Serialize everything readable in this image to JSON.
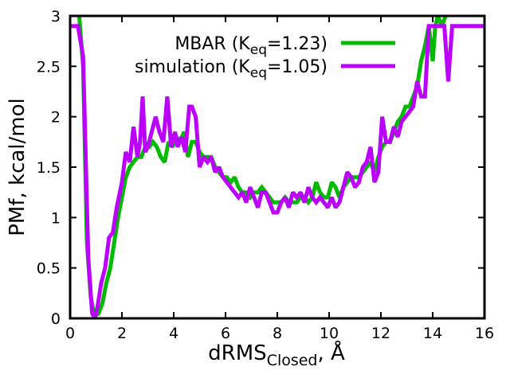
{
  "chart_data": {
    "type": "line",
    "xlabel": "dRMS",
    "xlabel_sub": "Closed",
    "xlabel_suffix": ", Å",
    "ylabel": "PMf, kcal/mol",
    "xlim": [
      0,
      16
    ],
    "ylim": [
      0,
      3
    ],
    "xticks": [
      "0",
      "2",
      "4",
      "6",
      "8",
      "10",
      "12",
      "14",
      "16"
    ],
    "yticks": [
      "0",
      "0.5",
      "1",
      "1.5",
      "2",
      "2.5",
      "3"
    ],
    "grid": false,
    "legend_position": "top-right",
    "series": [
      {
        "name": "MBAR (Keq=1.23)",
        "legend_main": "MBAR (K",
        "legend_sub": "eq",
        "legend_tail": "=1.23)",
        "color": "#00bb00",
        "x": [
          0.35,
          0.5,
          0.65,
          0.8,
          0.95,
          1.1,
          1.25,
          1.4,
          1.55,
          1.7,
          1.85,
          2.0,
          2.15,
          2.3,
          2.45,
          2.6,
          2.75,
          2.9,
          3.05,
          3.2,
          3.35,
          3.5,
          3.65,
          3.8,
          3.95,
          4.1,
          4.25,
          4.4,
          4.55,
          4.7,
          4.85,
          5.0,
          5.15,
          5.3,
          5.45,
          5.6,
          5.75,
          5.9,
          6.05,
          6.2,
          6.35,
          6.5,
          6.65,
          6.8,
          6.95,
          7.1,
          7.25,
          7.4,
          7.55,
          7.7,
          7.85,
          8.0,
          8.15,
          8.3,
          8.45,
          8.6,
          8.75,
          8.9,
          9.05,
          9.2,
          9.35,
          9.5,
          9.65,
          9.8,
          9.95,
          10.1,
          10.25,
          10.4,
          10.55,
          10.7,
          10.85,
          11.0,
          11.15,
          11.3,
          11.45,
          11.6,
          11.75,
          11.9,
          12.05,
          12.2,
          12.35,
          12.5,
          12.65,
          12.8,
          12.95,
          13.1,
          13.25,
          13.4,
          13.55,
          13.7,
          13.85,
          14.0,
          14.1,
          14.2,
          14.35,
          14.5
        ],
        "y": [
          3.0,
          2.5,
          0.75,
          0.2,
          0.02,
          0.05,
          0.15,
          0.35,
          0.5,
          0.75,
          1.0,
          1.2,
          1.4,
          1.5,
          1.55,
          1.6,
          1.6,
          1.7,
          1.7,
          1.75,
          1.7,
          1.6,
          1.55,
          1.75,
          1.7,
          1.8,
          1.75,
          1.85,
          1.6,
          1.75,
          1.75,
          1.65,
          1.6,
          1.6,
          1.6,
          1.5,
          1.45,
          1.4,
          1.4,
          1.35,
          1.4,
          1.3,
          1.25,
          1.25,
          1.2,
          1.25,
          1.25,
          1.3,
          1.25,
          1.2,
          1.15,
          1.15,
          1.15,
          1.2,
          1.15,
          1.15,
          1.15,
          1.2,
          1.2,
          1.15,
          1.2,
          1.35,
          1.25,
          1.2,
          1.2,
          1.35,
          1.3,
          1.2,
          1.3,
          1.35,
          1.4,
          1.4,
          1.4,
          1.45,
          1.5,
          1.55,
          1.45,
          1.6,
          1.7,
          1.75,
          1.75,
          1.85,
          1.95,
          2.0,
          2.1,
          2.1,
          2.2,
          2.3,
          2.55,
          2.7,
          2.9,
          2.55,
          2.9,
          3.0,
          2.9,
          3.0
        ]
      },
      {
        "name": "simulation (Keq=1.05)",
        "legend_main": "simulation (K",
        "legend_sub": "eq",
        "legend_tail": "=1.05)",
        "color": "#bb00ff",
        "x": [
          0.0,
          0.3,
          0.5,
          0.7,
          0.85,
          0.95,
          1.05,
          1.2,
          1.35,
          1.5,
          1.65,
          1.8,
          2.0,
          2.15,
          2.3,
          2.45,
          2.6,
          2.7,
          2.8,
          2.9,
          3.0,
          3.15,
          3.3,
          3.45,
          3.6,
          3.75,
          3.9,
          4.05,
          4.15,
          4.3,
          4.45,
          4.6,
          4.7,
          4.85,
          5.0,
          5.15,
          5.3,
          5.45,
          5.6,
          5.75,
          5.9,
          6.05,
          6.2,
          6.35,
          6.5,
          6.65,
          6.8,
          6.95,
          7.1,
          7.25,
          7.4,
          7.55,
          7.7,
          7.85,
          8.0,
          8.15,
          8.3,
          8.45,
          8.6,
          8.75,
          8.9,
          9.05,
          9.2,
          9.35,
          9.5,
          9.65,
          9.8,
          9.95,
          10.1,
          10.25,
          10.4,
          10.55,
          10.7,
          10.85,
          11.0,
          11.15,
          11.3,
          11.45,
          11.6,
          11.75,
          11.9,
          12.05,
          12.2,
          12.35,
          12.5,
          12.65,
          12.8,
          12.95,
          13.1,
          13.25,
          13.4,
          13.55,
          13.7,
          13.85,
          14.0,
          14.15,
          14.3,
          14.45,
          14.6,
          14.75,
          14.9,
          15.1,
          16.0
        ],
        "y": [
          2.9,
          2.9,
          2.6,
          0.6,
          0.05,
          0.0,
          0.1,
          0.35,
          0.5,
          0.8,
          0.85,
          1.1,
          1.35,
          1.65,
          1.55,
          1.9,
          1.6,
          1.75,
          2.2,
          1.65,
          1.7,
          1.85,
          2.0,
          1.85,
          1.75,
          2.2,
          1.7,
          1.85,
          1.7,
          1.8,
          1.65,
          2.1,
          2.1,
          2.0,
          1.5,
          1.6,
          1.55,
          1.6,
          1.45,
          1.5,
          1.4,
          1.35,
          1.3,
          1.25,
          1.2,
          1.25,
          1.15,
          1.3,
          1.2,
          1.1,
          1.25,
          1.25,
          1.15,
          1.05,
          1.05,
          1.15,
          1.2,
          1.1,
          1.25,
          1.2,
          1.25,
          1.15,
          1.3,
          1.2,
          1.15,
          1.2,
          1.15,
          1.1,
          1.2,
          1.1,
          1.15,
          1.3,
          1.45,
          1.4,
          1.3,
          1.35,
          1.5,
          1.55,
          1.7,
          1.35,
          1.45,
          2.0,
          1.75,
          1.75,
          1.9,
          1.8,
          1.95,
          2.0,
          2.05,
          2.1,
          2.35,
          2.2,
          2.2,
          2.9,
          2.9,
          2.9,
          2.9,
          2.9,
          2.35,
          2.9,
          2.9,
          2.9,
          2.9
        ]
      }
    ]
  }
}
